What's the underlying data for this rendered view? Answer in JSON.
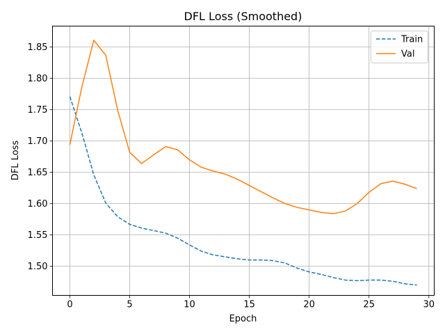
{
  "chart_data": {
    "type": "line",
    "title": "DFL Loss (Smoothed)",
    "xlabel": "Epoch",
    "ylabel": "DFL Loss",
    "xlim": [
      -1.45,
      30.45
    ],
    "ylim": [
      1.4535,
      1.8835
    ],
    "xticks": [
      0,
      5,
      10,
      15,
      20,
      25,
      30
    ],
    "yticks": [
      1.5,
      1.55,
      1.6,
      1.65,
      1.7,
      1.75,
      1.8,
      1.85
    ],
    "xtick_labels": [
      "0",
      "5",
      "10",
      "15",
      "20",
      "25",
      "30"
    ],
    "ytick_labels": [
      "1.50",
      "1.55",
      "1.60",
      "1.65",
      "1.70",
      "1.75",
      "1.80",
      "1.85"
    ],
    "grid": true,
    "legend_position": "top-right",
    "x": [
      0,
      1,
      2,
      3,
      4,
      5,
      6,
      7,
      8,
      9,
      10,
      11,
      12,
      13,
      14,
      15,
      16,
      17,
      18,
      19,
      20,
      21,
      22,
      23,
      24,
      25,
      26,
      27,
      28,
      29
    ],
    "series": [
      {
        "name": "Train",
        "color": "#1f77b4",
        "style": "dashed",
        "values": [
          1.771,
          1.713,
          1.646,
          1.601,
          1.579,
          1.567,
          1.561,
          1.557,
          1.553,
          1.545,
          1.534,
          1.524,
          1.518,
          1.515,
          1.512,
          1.51,
          1.51,
          1.509,
          1.505,
          1.497,
          1.491,
          1.487,
          1.482,
          1.478,
          1.477,
          1.478,
          1.478,
          1.476,
          1.472,
          1.47
        ]
      },
      {
        "name": "Val",
        "color": "#ff7f0e",
        "style": "solid",
        "values": [
          1.694,
          1.786,
          1.861,
          1.837,
          1.749,
          1.682,
          1.664,
          1.678,
          1.691,
          1.686,
          1.67,
          1.658,
          1.652,
          1.647,
          1.639,
          1.629,
          1.619,
          1.609,
          1.6,
          1.594,
          1.59,
          1.586,
          1.584,
          1.588,
          1.6,
          1.618,
          1.632,
          1.636,
          1.631,
          1.624
        ]
      }
    ]
  }
}
